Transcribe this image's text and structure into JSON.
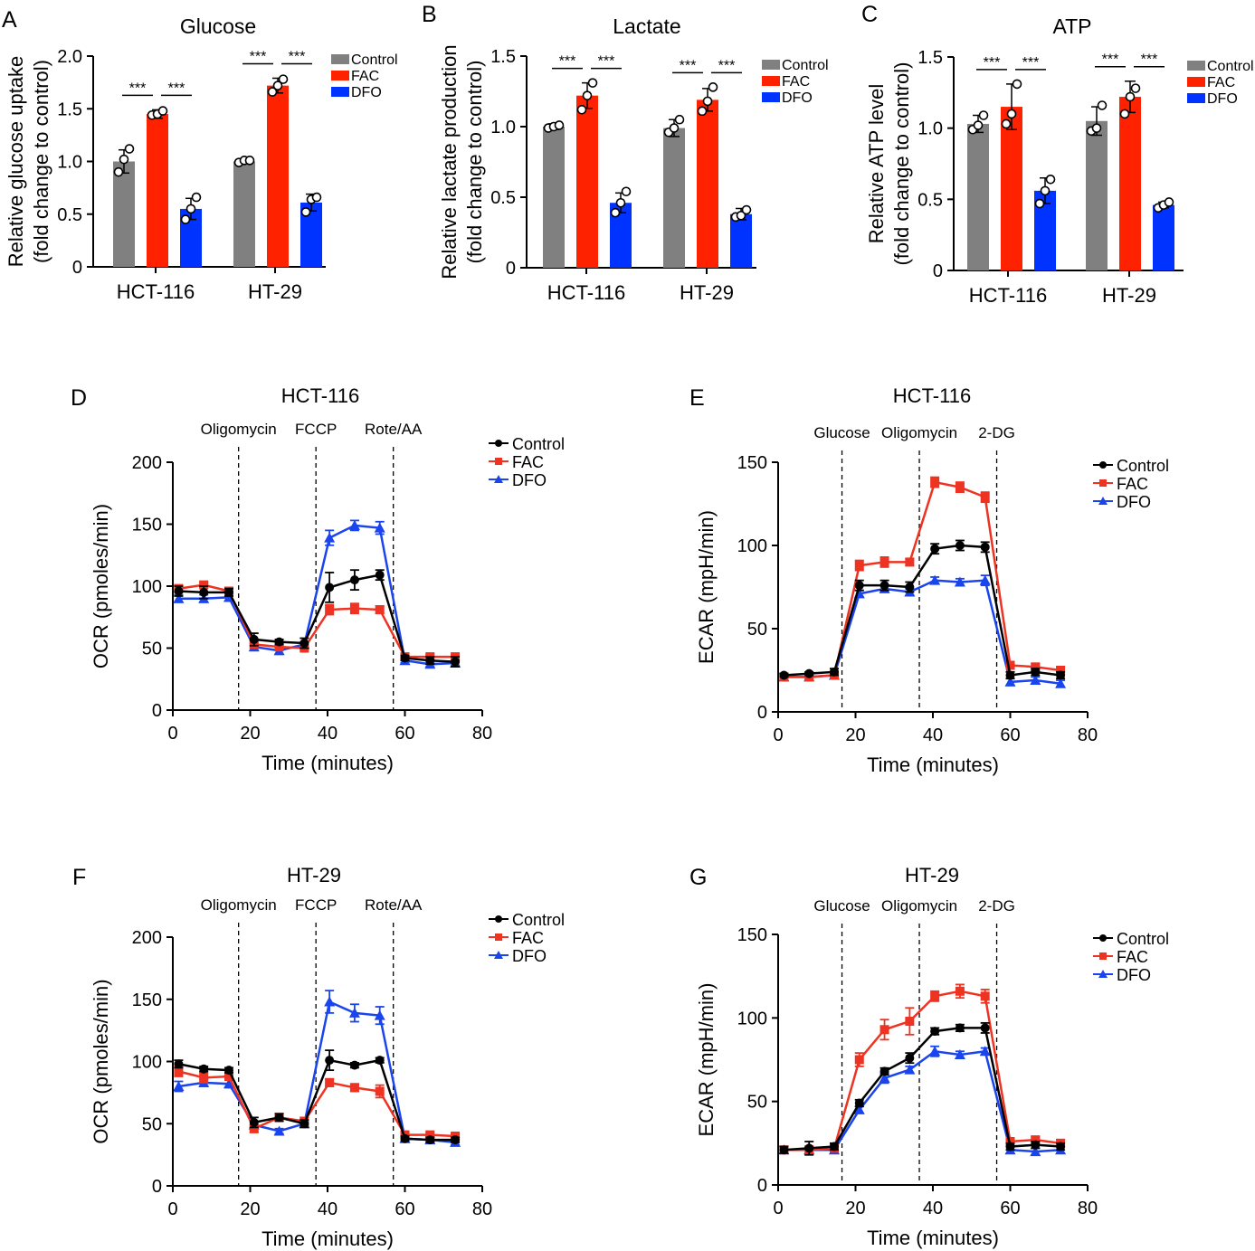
{
  "colors": {
    "control_bar": "#808080",
    "fac": "#ff2200",
    "dfo": "#0033ff",
    "control_line": "#000000",
    "fac_line": "#ee3322",
    "dfo_line": "#1a44ee"
  },
  "chart_data": [
    {
      "panel": "A",
      "type": "bar",
      "title": "Glucose",
      "ylabel_lines": [
        "Relative glucose uptake",
        "(fold change to control)"
      ],
      "categories": [
        "HCT-116",
        "HT-29"
      ],
      "ylim": [
        0,
        2.0
      ],
      "yticks": [
        "0",
        "0.5",
        "1.0",
        "1.5",
        "2.0"
      ],
      "series": [
        {
          "name": "Control",
          "values": [
            1.0,
            1.0
          ],
          "err": [
            0.11,
            0.02
          ],
          "points": [
            [
              0.9,
              1.02,
              1.12
            ],
            [
              0.99,
              1.01,
              1.01
            ]
          ]
        },
        {
          "name": "FAC",
          "values": [
            1.45,
            1.72
          ],
          "err": [
            0.04,
            0.07
          ],
          "points": [
            [
              1.44,
              1.45,
              1.48
            ],
            [
              1.66,
              1.72,
              1.78
            ]
          ]
        },
        {
          "name": "DFO",
          "values": [
            0.55,
            0.61
          ],
          "err": [
            0.1,
            0.08
          ],
          "points": [
            [
              0.45,
              0.55,
              0.66
            ],
            [
              0.52,
              0.64,
              0.66
            ]
          ]
        }
      ],
      "significance": [
        [
          "***",
          "***"
        ],
        [
          "***",
          "***"
        ]
      ],
      "legend": [
        "Control",
        "FAC",
        "DFO"
      ]
    },
    {
      "panel": "B",
      "type": "bar",
      "title": "Lactate",
      "ylabel_lines": [
        "Relative lactate production",
        "(fold change to control)"
      ],
      "categories": [
        "HCT-116",
        "HT-29"
      ],
      "ylim": [
        0,
        1.5
      ],
      "yticks": [
        "0",
        "0.5",
        "1.0",
        "1.5"
      ],
      "series": [
        {
          "name": "Control",
          "values": [
            1.0,
            0.99
          ],
          "err": [
            0.02,
            0.06
          ],
          "points": [
            [
              0.99,
              1.0,
              1.01
            ],
            [
              0.96,
              0.99,
              1.05
            ]
          ]
        },
        {
          "name": "FAC",
          "values": [
            1.22,
            1.19
          ],
          "err": [
            0.09,
            0.08
          ],
          "points": [
            [
              1.12,
              1.22,
              1.31
            ],
            [
              1.11,
              1.18,
              1.28
            ]
          ]
        },
        {
          "name": "DFO",
          "values": [
            0.46,
            0.38
          ],
          "err": [
            0.07,
            0.04
          ],
          "points": [
            [
              0.39,
              0.46,
              0.54
            ],
            [
              0.36,
              0.37,
              0.41
            ]
          ]
        }
      ],
      "significance": [
        [
          "***",
          "***"
        ],
        [
          "***",
          "***"
        ]
      ],
      "legend": [
        "Control",
        "FAC",
        "DFO"
      ]
    },
    {
      "panel": "C",
      "type": "bar",
      "title": "ATP",
      "ylabel_lines": [
        "Relative ATP level",
        "(fold change to control)"
      ],
      "categories": [
        "HCT-116",
        "HT-29"
      ],
      "ylim": [
        0,
        1.5
      ],
      "yticks": [
        "0",
        "0.5",
        "1.0",
        "1.5"
      ],
      "series": [
        {
          "name": "Control",
          "values": [
            1.03,
            1.05
          ],
          "err": [
            0.06,
            0.1
          ],
          "points": [
            [
              0.99,
              1.02,
              1.09
            ],
            [
              0.98,
              1.0,
              1.16
            ]
          ]
        },
        {
          "name": "FAC",
          "values": [
            1.15,
            1.22
          ],
          "err": [
            0.16,
            0.11
          ],
          "points": [
            [
              1.03,
              1.1,
              1.31
            ],
            [
              1.1,
              1.22,
              1.28
            ]
          ]
        },
        {
          "name": "DFO",
          "values": [
            0.56,
            0.46
          ],
          "err": [
            0.09,
            0.02
          ],
          "points": [
            [
              0.47,
              0.56,
              0.64
            ],
            [
              0.44,
              0.46,
              0.48
            ]
          ]
        }
      ],
      "significance": [
        [
          "***",
          "***"
        ],
        [
          "***",
          "***"
        ]
      ],
      "legend": [
        "Control",
        "FAC",
        "DFO"
      ]
    },
    {
      "panel": "D",
      "type": "line",
      "title": "HCT-116",
      "xlabel": "Time (minutes)",
      "ylabel": "OCR (pmoles/min)",
      "xlim": [
        0,
        80
      ],
      "xticks": [
        0,
        20,
        40,
        60,
        80
      ],
      "ylim": [
        0,
        200
      ],
      "yticks": [
        0,
        50,
        100,
        150,
        200
      ],
      "x": [
        1.5,
        8,
        14.5,
        21,
        27.5,
        34,
        40.5,
        47,
        53.5,
        60,
        66.5,
        73
      ],
      "injections": [
        {
          "x": 17,
          "label": "Oligomycin"
        },
        {
          "x": 37,
          "label": "FCCP"
        },
        {
          "x": 57,
          "label": "Rote/AA"
        }
      ],
      "series": [
        {
          "name": "Control",
          "values": [
            96,
            95,
            95,
            57,
            55,
            54,
            99,
            105,
            109,
            42,
            40,
            39
          ],
          "err": [
            4,
            5,
            3,
            5,
            2,
            4,
            12,
            8,
            4,
            2,
            3,
            4
          ]
        },
        {
          "name": "FAC",
          "values": [
            98,
            101,
            96,
            53,
            51,
            50,
            81,
            82,
            81,
            43,
            43,
            43
          ],
          "err": [
            3,
            2,
            2,
            3,
            2,
            2,
            4,
            4,
            3,
            2,
            2,
            2
          ]
        },
        {
          "name": "DFO",
          "values": [
            90,
            90,
            91,
            51,
            48,
            53,
            139,
            149,
            147,
            40,
            37,
            38
          ],
          "err": [
            3,
            3,
            3,
            3,
            3,
            2,
            6,
            4,
            5,
            2,
            2,
            2
          ]
        }
      ],
      "legend": [
        "Control",
        "FAC",
        "DFO"
      ]
    },
    {
      "panel": "E",
      "type": "line",
      "title": "HCT-116",
      "xlabel": "Time (minutes)",
      "ylabel": "ECAR (mpH/min)",
      "xlim": [
        0,
        80
      ],
      "xticks": [
        0,
        20,
        40,
        60,
        80
      ],
      "ylim": [
        0,
        150
      ],
      "yticks": [
        0,
        50,
        100,
        150
      ],
      "x": [
        1.5,
        8,
        14.5,
        21,
        27.5,
        34,
        40.5,
        47,
        53.5,
        60,
        66.5,
        73
      ],
      "injections": [
        {
          "x": 16.5,
          "label": "Glucose"
        },
        {
          "x": 36.5,
          "label": "Oligomycin"
        },
        {
          "x": 56.5,
          "label": "2-DG"
        }
      ],
      "series": [
        {
          "name": "Control",
          "values": [
            22,
            23,
            24,
            76,
            76,
            75,
            98,
            100,
            99,
            22,
            24,
            22
          ],
          "err": [
            1,
            1,
            2,
            3,
            3,
            3,
            3,
            3,
            3,
            2,
            2,
            2
          ]
        },
        {
          "name": "FAC",
          "values": [
            21,
            21,
            22,
            88,
            90,
            90,
            138,
            135,
            129,
            28,
            27,
            25
          ],
          "err": [
            2,
            2,
            2,
            3,
            3,
            2,
            3,
            3,
            3,
            2,
            2,
            2
          ]
        },
        {
          "name": "DFO",
          "values": [
            21,
            21,
            22,
            71,
            74,
            72,
            79,
            78,
            79,
            18,
            19,
            17
          ],
          "err": [
            2,
            2,
            2,
            2,
            2,
            2,
            2,
            2,
            3,
            2,
            2,
            2
          ]
        }
      ],
      "legend": [
        "Control",
        "FAC",
        "DFO"
      ]
    },
    {
      "panel": "F",
      "type": "line",
      "title": "HT-29",
      "xlabel": "Time (minutes)",
      "ylabel": "OCR (pmoles/min)",
      "xlim": [
        0,
        80
      ],
      "xticks": [
        0,
        20,
        40,
        60,
        80
      ],
      "ylim": [
        0,
        200
      ],
      "yticks": [
        0,
        50,
        100,
        150,
        200
      ],
      "x": [
        1.5,
        8,
        14.5,
        21,
        27.5,
        34,
        40.5,
        47,
        53.5,
        60,
        66.5,
        73
      ],
      "injections": [
        {
          "x": 17,
          "label": "Oligomycin"
        },
        {
          "x": 37,
          "label": "FCCP"
        },
        {
          "x": 57,
          "label": "Rote/AA"
        }
      ],
      "series": [
        {
          "name": "Control",
          "values": [
            98,
            94,
            93,
            51,
            55,
            50,
            101,
            97,
            101,
            38,
            37,
            37
          ],
          "err": [
            3,
            2,
            2,
            4,
            3,
            3,
            8,
            2,
            2,
            2,
            2,
            2
          ]
        },
        {
          "name": "FAC",
          "values": [
            92,
            87,
            88,
            46,
            55,
            52,
            83,
            79,
            76,
            41,
            41,
            40
          ],
          "err": [
            4,
            4,
            3,
            3,
            3,
            3,
            3,
            3,
            5,
            2,
            2,
            2
          ]
        },
        {
          "name": "DFO",
          "values": [
            80,
            83,
            82,
            49,
            44,
            50,
            148,
            139,
            137,
            38,
            37,
            35
          ],
          "err": [
            4,
            3,
            3,
            3,
            2,
            2,
            9,
            7,
            7,
            2,
            2,
            2
          ]
        }
      ],
      "legend": [
        "Control",
        "FAC",
        "DFO"
      ]
    },
    {
      "panel": "G",
      "type": "line",
      "title": "HT-29",
      "xlabel": "Time (minutes)",
      "ylabel": "ECAR (mpH/min)",
      "xlim": [
        0,
        80
      ],
      "xticks": [
        0,
        20,
        40,
        60,
        80
      ],
      "ylim": [
        0,
        150
      ],
      "yticks": [
        0,
        50,
        100,
        150
      ],
      "x": [
        1.5,
        8,
        14.5,
        21,
        27.5,
        34,
        40.5,
        47,
        53.5,
        60,
        66.5,
        73
      ],
      "injections": [
        {
          "x": 16.5,
          "label": "Glucose"
        },
        {
          "x": 36.5,
          "label": "Oligomycin"
        },
        {
          "x": 56.5,
          "label": "2-DG"
        }
      ],
      "series": [
        {
          "name": "Control",
          "values": [
            21,
            22,
            23,
            49,
            68,
            76,
            92,
            94,
            94,
            23,
            24,
            23
          ],
          "err": [
            2,
            4,
            2,
            2,
            2,
            3,
            2,
            2,
            3,
            2,
            2,
            2
          ]
        },
        {
          "name": "FAC",
          "values": [
            21,
            21,
            22,
            75,
            93,
            98,
            113,
            116,
            113,
            26,
            27,
            25
          ],
          "err": [
            2,
            2,
            2,
            4,
            6,
            8,
            3,
            4,
            4,
            2,
            2,
            2
          ]
        },
        {
          "name": "DFO",
          "values": [
            21,
            21,
            21,
            45,
            64,
            69,
            80,
            78,
            80,
            21,
            20,
            21
          ],
          "err": [
            2,
            2,
            2,
            2,
            3,
            2,
            3,
            2,
            2,
            2,
            2,
            2
          ]
        }
      ],
      "legend": [
        "Control",
        "FAC",
        "DFO"
      ]
    }
  ]
}
